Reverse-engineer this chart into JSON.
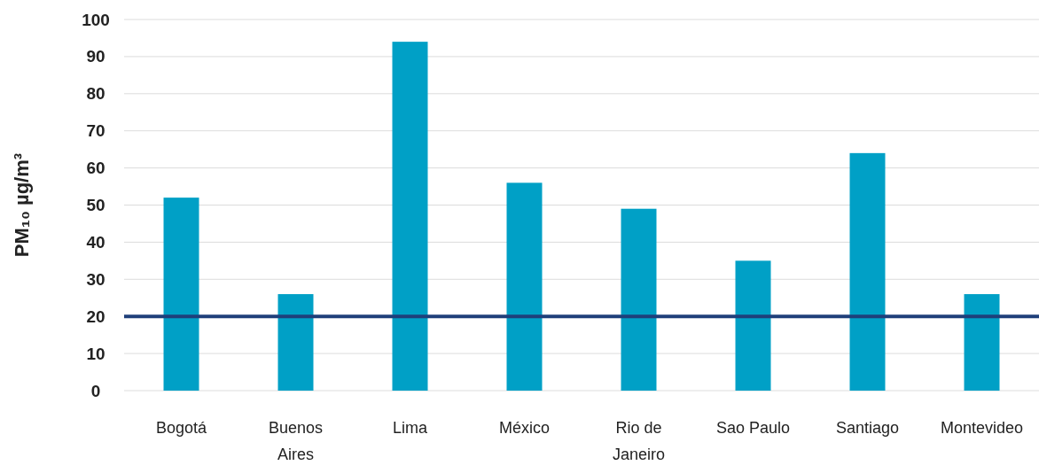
{
  "chart_data": {
    "type": "bar",
    "ylabel": "PM₁₀ µg/m³",
    "categories": [
      "Bogotá",
      "Buenos Aires",
      "Lima",
      "México",
      "Rio de Janeiro",
      "Sao Paulo",
      "Santiago",
      "Montevideo"
    ],
    "values": [
      52,
      26,
      94,
      56,
      49,
      35,
      64,
      26
    ],
    "color": "#00a0c6",
    "ylim": [
      0,
      100
    ],
    "yticks": [
      0,
      10,
      20,
      30,
      40,
      50,
      60,
      70,
      80,
      90,
      100
    ],
    "grid": "y",
    "ref_lines": [
      {
        "axis": "y",
        "value": 20,
        "color": "#1f3f7a"
      }
    ]
  }
}
